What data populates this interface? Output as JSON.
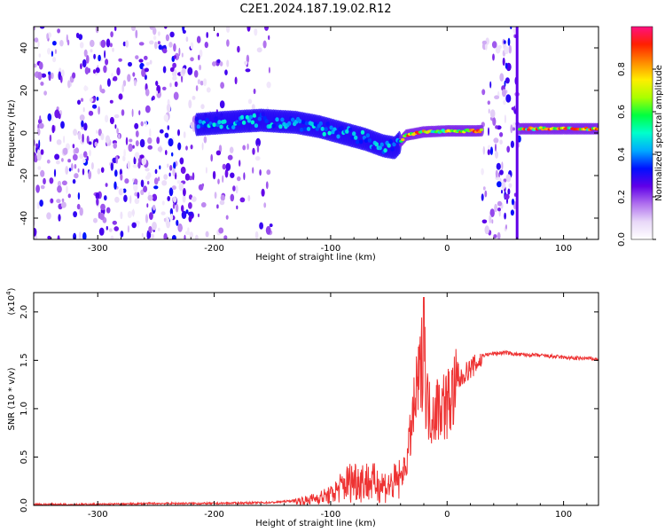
{
  "title": "C2E1.2024.187.19.02.R12",
  "chart_data": [
    {
      "type": "heatmap",
      "xlabel": "Height of straight line (km)",
      "ylabel": "Frequency (Hz)",
      "xlim": [
        -355,
        130
      ],
      "ylim": [
        -50,
        50
      ],
      "xticks": [
        -300,
        -200,
        -100,
        0,
        100
      ],
      "yticks": [
        -40,
        -20,
        0,
        20,
        40
      ],
      "colorbar": {
        "label": "Normalized spectral amplitude",
        "range": [
          0.0,
          1.0
        ],
        "ticks": [
          0.0,
          0.2,
          0.4,
          0.6,
          0.8
        ],
        "colors": [
          "#ffffff",
          "#e8d8f8",
          "#b070ee",
          "#6000e8",
          "#0010ff",
          "#00aaff",
          "#00ffcc",
          "#00ff40",
          "#aaff00",
          "#ffee00",
          "#ff8800",
          "#ff2000",
          "#ff1080"
        ]
      },
      "signal_track": [
        {
          "x": -215,
          "y": 4
        },
        {
          "x": -190,
          "y": 5
        },
        {
          "x": -160,
          "y": 6
        },
        {
          "x": -130,
          "y": 5
        },
        {
          "x": -110,
          "y": 3
        },
        {
          "x": -90,
          "y": 0
        },
        {
          "x": -70,
          "y": -3
        },
        {
          "x": -55,
          "y": -6
        },
        {
          "x": -45,
          "y": -7
        },
        {
          "x": -35,
          "y": -1
        },
        {
          "x": -20,
          "y": 0.5
        },
        {
          "x": 0,
          "y": 1
        },
        {
          "x": 25,
          "y": 1
        },
        {
          "x": 65,
          "y": 2
        },
        {
          "x": 100,
          "y": 2
        },
        {
          "x": 130,
          "y": 2
        }
      ],
      "noise_regions": [
        [
          -355,
          -215
        ],
        [
          -215,
          -150
        ],
        [
          30,
          62
        ]
      ]
    },
    {
      "type": "line",
      "xlabel": "Height of straight line (km)",
      "ylabel": "SNR (10 * v/v)",
      "y_multiplier": "(x10",
      "y_multiplier_exp": "4",
      "y_multiplier_close": ")",
      "xlim": [
        -355,
        130
      ],
      "ylim": [
        0,
        2.2
      ],
      "xticks": [
        -300,
        -200,
        -100,
        0,
        100
      ],
      "yticks": [
        "0.0",
        "0.5",
        "1.0",
        "1.5",
        "2.0"
      ],
      "color": "#ee3333",
      "series": [
        {
          "x": [
            -355,
            -300,
            -250,
            -200,
            -150,
            -120,
            -100,
            -90,
            -80,
            -70,
            -60,
            -50,
            -40,
            -35,
            -30,
            -25,
            -22,
            -20,
            -18,
            -15,
            -10,
            -5,
            0,
            5,
            10,
            15,
            20,
            25,
            30,
            40,
            50,
            60,
            80,
            100,
            110,
            120,
            130
          ],
          "y": [
            0.01,
            0.01,
            0.02,
            0.02,
            0.03,
            0.06,
            0.12,
            0.22,
            0.3,
            0.28,
            0.25,
            0.22,
            0.3,
            0.45,
            0.9,
            1.3,
            1.5,
            1.9,
            1.2,
            1.0,
            1.05,
            1.1,
            1.1,
            1.2,
            1.3,
            1.4,
            1.45,
            1.5,
            1.55,
            1.57,
            1.58,
            1.56,
            1.55,
            1.53,
            1.52,
            1.52,
            1.51
          ]
        }
      ]
    }
  ]
}
